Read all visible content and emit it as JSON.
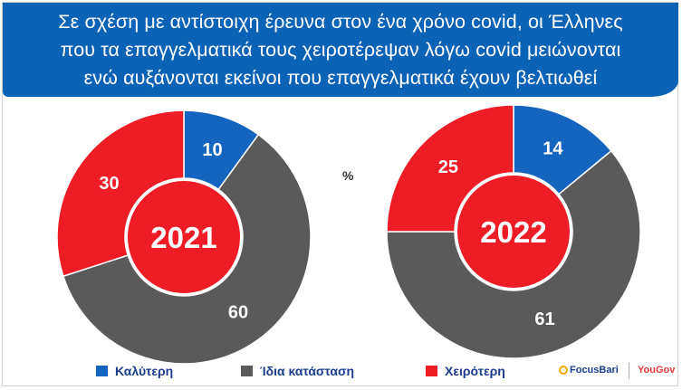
{
  "header": {
    "title_lines": [
      "Σε σχέση με αντίστοιχη έρευνα στον ένα χρόνο covid, οι Έλληνες",
      "που τα επαγγελματικά τους χειροτέρεψαν λόγω covid μειώνονται",
      "ενώ αυξάνονται εκείνοι που επαγγελματικά έχουν βελτιωθεί"
    ]
  },
  "unit_label": "%",
  "colors": {
    "header_bg": "#0b63b8",
    "better": "#1565c0",
    "same": "#5a5a5a",
    "worse": "#ee1c25",
    "center": "#ee1c25"
  },
  "chart_data": [
    {
      "type": "pie",
      "center_label": "2021",
      "categories": [
        "Καλύτερη",
        "Ίδια κατάσταση",
        "Χειρότερη"
      ],
      "values": [
        10,
        60,
        30
      ],
      "labels": [
        "10",
        "60",
        "30"
      ]
    },
    {
      "type": "pie",
      "center_label": "2022",
      "categories": [
        "Καλύτερη",
        "Ίδια κατάσταση",
        "Χειρότερη"
      ],
      "values": [
        14,
        61,
        25
      ],
      "labels": [
        "14",
        "61",
        "25"
      ]
    }
  ],
  "legend": [
    {
      "label": "Καλύτερη",
      "color": "#1565c0"
    },
    {
      "label": "Ίδια κατάσταση",
      "color": "#5a5a5a"
    },
    {
      "label": "Χειρότερη",
      "color": "#ee1c25"
    }
  ],
  "brands": {
    "focus": "FocusBari",
    "yougov": "YouGov"
  }
}
